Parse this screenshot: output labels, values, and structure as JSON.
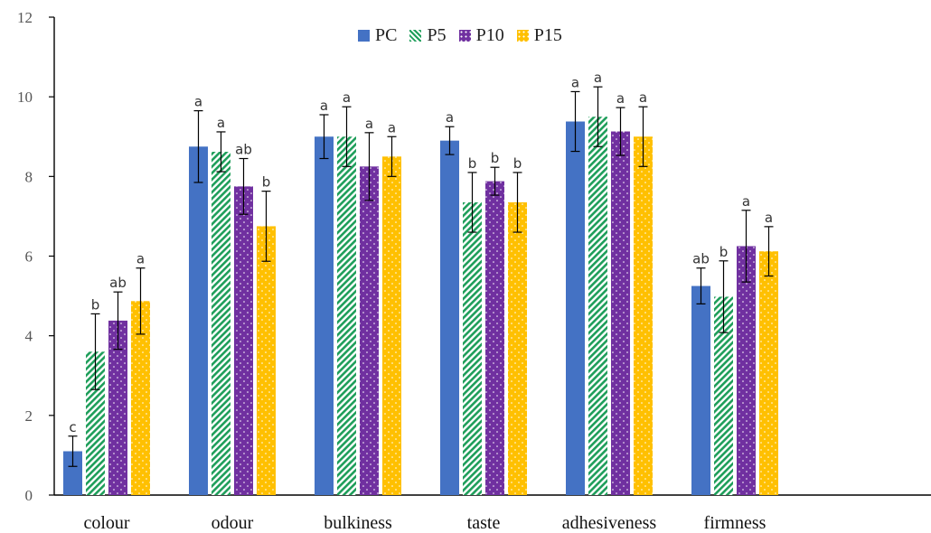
{
  "chart_data": {
    "type": "bar",
    "title": "",
    "xlabel": "",
    "ylabel": "",
    "ylim": [
      0,
      12
    ],
    "yticks": [
      0,
      2,
      4,
      6,
      8,
      10,
      12
    ],
    "legend_position": "top-center",
    "grid": false,
    "categories": [
      "colour",
      "odour",
      "bulkiness",
      "taste",
      "adhesiveness",
      "firmness"
    ],
    "series": [
      {
        "name": "PC",
        "color": "#4472C4",
        "pattern": "solid",
        "values": [
          1.1,
          8.75,
          9.0,
          8.9,
          9.38,
          5.25
        ],
        "errors": [
          0.38,
          0.9,
          0.55,
          0.35,
          0.75,
          0.45
        ],
        "letters": [
          "c",
          "a",
          "a",
          "a",
          "a",
          "ab"
        ]
      },
      {
        "name": "P5",
        "color": "#1E9E5A",
        "pattern": "diagonal-stripes",
        "values": [
          3.6,
          8.62,
          9.0,
          7.35,
          9.5,
          4.98
        ],
        "errors": [
          0.95,
          0.5,
          0.75,
          0.75,
          0.75,
          0.9
        ],
        "letters": [
          "b",
          "a",
          "a",
          "b",
          "a",
          "b"
        ]
      },
      {
        "name": "P10",
        "color": "#7030A0",
        "pattern": "dots",
        "values": [
          4.38,
          7.75,
          8.25,
          7.88,
          9.13,
          6.25
        ],
        "errors": [
          0.72,
          0.7,
          0.85,
          0.35,
          0.6,
          0.9
        ],
        "letters": [
          "ab",
          "ab",
          "a",
          "b",
          "a",
          "a"
        ]
      },
      {
        "name": "P15",
        "color": "#FFC000",
        "pattern": "dots",
        "values": [
          4.87,
          6.75,
          8.5,
          7.35,
          9.0,
          6.12
        ],
        "errors": [
          0.83,
          0.88,
          0.5,
          0.75,
          0.75,
          0.62
        ],
        "letters": [
          "a",
          "b",
          "a",
          "b",
          "a",
          "a"
        ]
      }
    ]
  }
}
